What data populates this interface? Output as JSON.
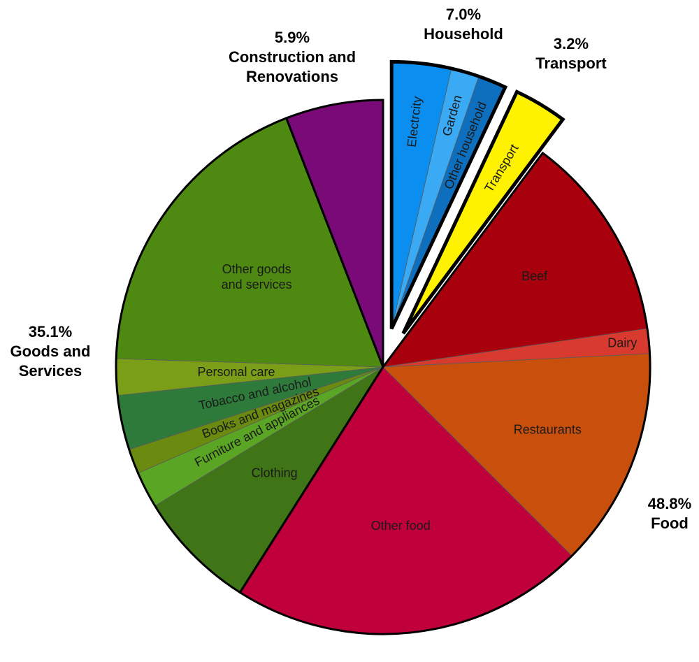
{
  "chart_data": {
    "type": "pie",
    "groups": [
      {
        "name": "Household",
        "percent": "7.0%",
        "color": "#0a8ff0",
        "exploded": true,
        "slices": [
          {
            "label": "Electrcity",
            "value": 3.6,
            "color": "#0a8ff0"
          },
          {
            "label": "Garden",
            "value": 1.7,
            "color": "#3aaaf5"
          },
          {
            "label": "Other household",
            "value": 1.7,
            "color": "#0e6fbf"
          }
        ]
      },
      {
        "name": "Transport",
        "percent": "3.2%",
        "color": "#fff200",
        "exploded": true,
        "slices": [
          {
            "label": "Transport",
            "value": 3.2,
            "color": "#fff200"
          }
        ]
      },
      {
        "name": "Food",
        "percent": "48.8%",
        "color": "#c0003b",
        "exploded": false,
        "slices": [
          {
            "label": "Beef",
            "value": 12.5,
            "color": "#a8000d"
          },
          {
            "label": "Dairy",
            "value": 1.5,
            "color": "#d93a30"
          },
          {
            "label": "Restaurants",
            "value": 13.3,
            "color": "#c8500c"
          },
          {
            "label": "Other food",
            "value": 21.5,
            "color": "#c0003b"
          }
        ]
      },
      {
        "name": "Goods and Services",
        "percent": "35.1%",
        "color": "#4e8a12",
        "exploded": false,
        "slices": [
          {
            "label": "Clothing",
            "value": 7.3,
            "color": "#3f7516"
          },
          {
            "label": "Furniture and appliances",
            "value": 2.2,
            "color": "#5aa524"
          },
          {
            "label": "Books and magazines",
            "value": 1.5,
            "color": "#6a8a10"
          },
          {
            "label": "Tobacco and alcohol",
            "value": 3.3,
            "color": "#2e7a3a"
          },
          {
            "label": "Personal care",
            "value": 2.2,
            "color": "#7a9e18"
          },
          {
            "label": "Other goods and services",
            "value": 18.6,
            "color": "#4e8a12"
          }
        ]
      },
      {
        "name": "Construction and Renovations",
        "percent": "5.9%",
        "color": "#7a0a78",
        "exploded": false,
        "slices": [
          {
            "label": "",
            "value": 5.9,
            "color": "#7a0a78"
          }
        ]
      }
    ]
  }
}
